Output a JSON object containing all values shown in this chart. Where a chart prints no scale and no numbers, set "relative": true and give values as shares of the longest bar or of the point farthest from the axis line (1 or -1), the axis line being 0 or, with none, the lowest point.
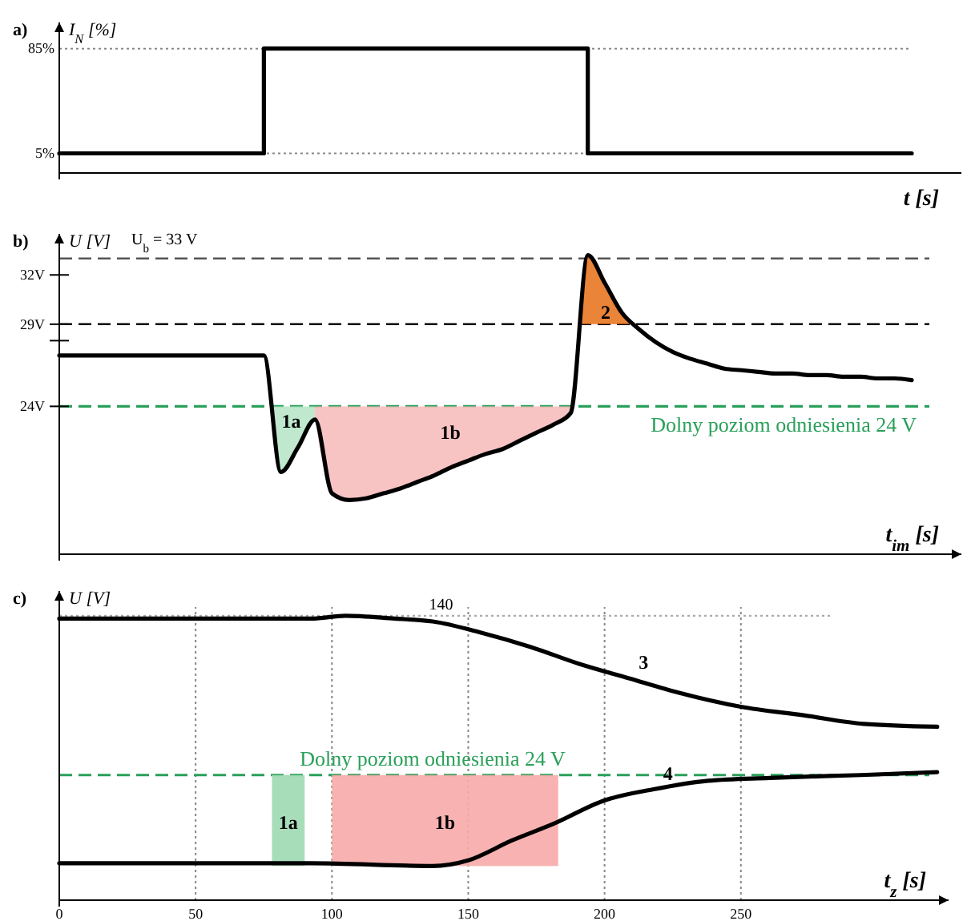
{
  "chart_data": [
    {
      "type": "step",
      "title": "a)",
      "xlabel": "t [s]",
      "ylabel": "I$_{N}$ [%]",
      "categories": [
        null,
        null,
        null,
        null,
        null,
        null,
        null,
        null,
        null,
        null,
        null,
        null,
        null,
        null,
        null,
        null,
        null,
        null,
        null,
        null,
        null,
        null,
        null,
        null,
        null,
        null,
        null,
        null,
        null,
        null,
        null,
        null,
        null,
        null,
        null,
        null,
        null,
        null,
        null,
        null,
        null,
        null,
        null,
        null,
        null,
        null,
        null,
        null,
        null,
        null,
        null
      ],
      "series": [
        {
          "color": "#000000",
          "values": [
            5,
            5,
            5,
            5,
            5,
            5,
            5,
            5,
            5,
            5,
            5,
            5,
            85,
            85,
            85,
            85,
            85,
            85,
            85,
            85,
            85,
            85,
            85,
            85,
            85,
            85,
            85,
            85,
            85,
            85,
            85,
            5,
            5,
            5,
            5,
            5,
            5,
            5,
            5,
            5,
            5,
            5,
            5,
            5,
            5,
            5,
            5,
            5,
            5,
            5,
            5
          ]
        }
      ],
      "ylim": [
        -10,
        105
      ],
      "yticks": [
        {
          "value": 5,
          "label": "5%"
        },
        {
          "value": 85,
          "label": "85%"
        }
      ],
      "grid": "y"
    },
    {
      "type": "line",
      "title": "b)",
      "xlabel": "t$_{im}$ [s]",
      "ylabel": "U [V]",
      "categories": [
        null,
        null,
        null,
        null,
        null,
        null,
        null,
        null,
        null,
        null,
        null,
        null,
        null,
        null,
        null,
        null,
        null,
        null,
        null,
        null,
        null,
        null,
        null,
        null,
        null,
        null,
        null,
        null,
        null,
        null,
        null,
        null,
        null,
        null,
        null,
        null,
        null,
        null,
        null,
        null,
        null,
        null,
        null,
        null,
        null,
        null,
        null,
        null,
        null,
        null,
        null
      ],
      "series": [
        {
          "color": "#000000",
          "values": [
            27.1,
            27.1,
            27.1,
            27.1,
            27.1,
            27.1,
            27.1,
            27.1,
            27.1,
            27.1,
            27.1,
            27.1,
            27.1,
            20.0,
            21.5,
            23.2,
            18.7,
            18.3,
            18.4,
            18.7,
            19.0,
            19.4,
            19.8,
            20.3,
            20.7,
            21.1,
            21.4,
            21.9,
            22.4,
            22.9,
            23.6,
            33.2,
            31.5,
            29.7,
            28.7,
            27.9,
            27.3,
            26.9,
            26.6,
            26.3,
            26.2,
            26.1,
            26.0,
            26.0,
            25.9,
            25.9,
            25.8,
            25.8,
            25.7,
            25.7,
            25.6
          ]
        }
      ],
      "annotations": [
        "1a",
        "1b",
        "2"
      ],
      "ylim": [
        15,
        34.5
      ],
      "yticks": [
        {
          "value": 24,
          "label": "24V"
        },
        {
          "value": 28,
          "label": null
        },
        {
          "value": 29,
          "label": "29V"
        },
        {
          "value": 32,
          "label": "32V"
        }
      ],
      "ref_lines": [
        {
          "axis": "y",
          "value": 33,
          "label": "U$_{b}$ = 33 V",
          "color": "#555555",
          "line_style": "dashed"
        },
        {
          "axis": "y",
          "value": 29,
          "color": "#000000",
          "line_style": "dashed"
        },
        {
          "axis": "y",
          "value": 24,
          "label": "Dolny poziom odniesienia 24 V",
          "color": "#2aa05a",
          "line_style": "dashed"
        }
      ]
    },
    {
      "type": "line",
      "title": "c)",
      "xlabel": "t$_{z}$ [s]",
      "ylabel": "U [V]",
      "relative": true,
      "xlim": [
        0,
        325
      ],
      "xticks": [
        0,
        50,
        100,
        150,
        200,
        250
      ],
      "grid": "x",
      "series": [
        {
          "name": "3",
          "color": "#000000",
          "x": [
            0,
            92.6,
            105,
            123,
            137,
            155,
            173,
            191,
            209,
            227,
            250,
            273,
            295,
            322
          ],
          "values": [
            0.99,
            0.99,
            1,
            0.99,
            0.98,
            0.94,
            0.89,
            0.83,
            0.78,
            0.73,
            0.68,
            0.65,
            0.62,
            0.61
          ]
        },
        {
          "name": "4",
          "color": "#000000",
          "x": [
            0,
            92.6,
            137,
            150,
            166,
            181.6,
            199.7,
            218,
            238,
            260.5,
            294,
            322
          ],
          "values": [
            0.13,
            0.13,
            0.12,
            0.14,
            0.21,
            0.27,
            0.35,
            0.39,
            0.42,
            0.43,
            0.44,
            0.45
          ]
        }
      ],
      "ref_lines": [
        {
          "axis": "y",
          "value": 1,
          "color": "#aaaaaa",
          "line_style": "dotted"
        },
        {
          "axis": "y",
          "value": 0.44,
          "label": "Dolny poziom odniesienia 24 V",
          "color": "#2aa05a",
          "line_style": "dashed"
        }
      ],
      "bands": [
        {
          "axis": "x",
          "from": 78,
          "to": 90,
          "label": "1a",
          "color": "#9fd9b3"
        },
        {
          "axis": "x",
          "from": 100,
          "to": 183,
          "label": "1b",
          "color": "#f7aaaa"
        }
      ],
      "annotations": [
        {
          "text": "140",
          "x": 140,
          "y": 1
        }
      ]
    }
  ]
}
